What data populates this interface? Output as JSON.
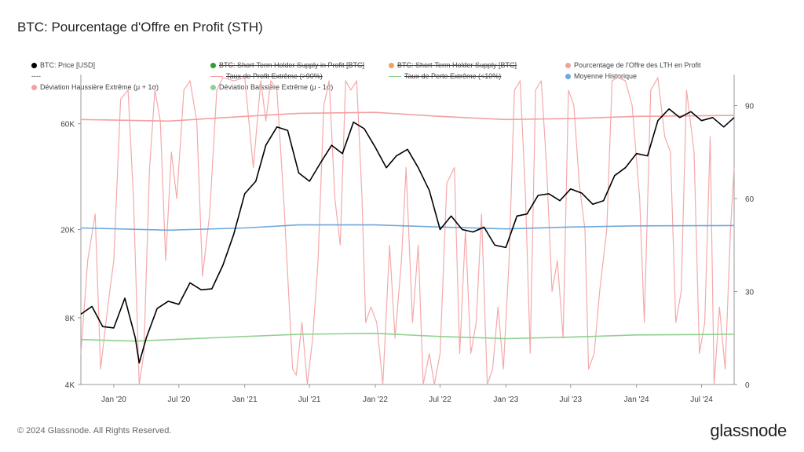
{
  "title": "BTC: Pourcentage d'Offre en Profit (STH)",
  "footer": "© 2024 Glassnode. All Rights Reserved.",
  "brand": "glassnode",
  "legend": [
    {
      "label": "BTC: Price [USD]",
      "color": "#000000",
      "marker": "dot",
      "struck": false
    },
    {
      "label": "BTC: Short-Term Holder Supply in Profit [BTC]",
      "color": "#2ca02c",
      "marker": "dot",
      "struck": true
    },
    {
      "label": "BTC: Short-Term Holder Supply [BTC]",
      "color": "#f5a05a",
      "marker": "dot",
      "struck": true
    },
    {
      "label": "Pourcentage de l'Offre des LTH en Profit",
      "color": "#f4a0a0",
      "marker": "dot",
      "struck": false
    },
    {
      "label": "----",
      "color": "#888888",
      "marker": "none",
      "struck": false
    },
    {
      "label": "Taux de Profit Extrême (>90%)",
      "color": "#f4a0a0",
      "marker": "line",
      "struck": true
    },
    {
      "label": "Taux de Perte Extrême (<10%)",
      "color": "#8fd18f",
      "marker": "line",
      "struck": true
    },
    {
      "label": "Moyenne Historique",
      "color": "#6fa8dc",
      "marker": "dot",
      "struck": false
    },
    {
      "label": "Déviation Haussière Extrême (μ + 1σ)",
      "color": "#f4a0a0",
      "marker": "dot",
      "struck": false
    },
    {
      "label": "Déviation Baissière Extrême (μ - 1σ)",
      "color": "#8fd18f",
      "marker": "dot",
      "struck": false
    }
  ],
  "chart_data": {
    "type": "line",
    "x_ticks": [
      "Jan '20",
      "Jul '20",
      "Jan '21",
      "Jul '21",
      "Jan '22",
      "Jul '22",
      "Jan '23",
      "Jul '23",
      "Jan '24",
      "Jul '24"
    ],
    "x_tick_dates": [
      "2020-01-01",
      "2020-07-01",
      "2021-01-01",
      "2021-07-01",
      "2022-01-01",
      "2022-07-01",
      "2023-01-01",
      "2023-07-01",
      "2024-01-01",
      "2024-07-01"
    ],
    "x_range": [
      "2019-10-01",
      "2024-09-30"
    ],
    "y_left": {
      "scale": "log",
      "ticks": [
        4000,
        8000,
        20000,
        60000
      ],
      "tick_labels": [
        "4K",
        "8K",
        "20K",
        "60K"
      ],
      "range": [
        4000,
        100000
      ]
    },
    "y_right": {
      "scale": "linear",
      "ticks": [
        0,
        30,
        60,
        90
      ],
      "range": [
        0,
        100
      ]
    },
    "series": [
      {
        "name": "BTC: Price [USD]",
        "axis": "left",
        "color": "#000000",
        "points": [
          [
            "2019-10-01",
            8300
          ],
          [
            "2019-11-01",
            9000
          ],
          [
            "2019-12-01",
            7300
          ],
          [
            "2020-01-01",
            7200
          ],
          [
            "2020-02-01",
            9800
          ],
          [
            "2020-03-01",
            6500
          ],
          [
            "2020-03-12",
            5000
          ],
          [
            "2020-04-01",
            6500
          ],
          [
            "2020-05-01",
            8800
          ],
          [
            "2020-06-01",
            9500
          ],
          [
            "2020-07-01",
            9200
          ],
          [
            "2020-08-01",
            11500
          ],
          [
            "2020-09-01",
            10700
          ],
          [
            "2020-10-01",
            10800
          ],
          [
            "2020-11-01",
            13800
          ],
          [
            "2020-12-01",
            19000
          ],
          [
            "2021-01-01",
            29000
          ],
          [
            "2021-02-01",
            33000
          ],
          [
            "2021-03-01",
            48000
          ],
          [
            "2021-04-01",
            58000
          ],
          [
            "2021-05-01",
            56000
          ],
          [
            "2021-06-01",
            36000
          ],
          [
            "2021-07-01",
            33000
          ],
          [
            "2021-08-01",
            40000
          ],
          [
            "2021-09-01",
            48000
          ],
          [
            "2021-10-01",
            44000
          ],
          [
            "2021-11-01",
            61000
          ],
          [
            "2021-12-01",
            57000
          ],
          [
            "2022-01-01",
            47000
          ],
          [
            "2022-02-01",
            38000
          ],
          [
            "2022-03-01",
            43000
          ],
          [
            "2022-04-01",
            46000
          ],
          [
            "2022-05-01",
            38000
          ],
          [
            "2022-06-01",
            30000
          ],
          [
            "2022-07-01",
            20000
          ],
          [
            "2022-08-01",
            23000
          ],
          [
            "2022-09-01",
            20000
          ],
          [
            "2022-10-01",
            19500
          ],
          [
            "2022-11-01",
            20500
          ],
          [
            "2022-12-01",
            17000
          ],
          [
            "2023-01-01",
            16600
          ],
          [
            "2023-02-01",
            23000
          ],
          [
            "2023-03-01",
            23500
          ],
          [
            "2023-04-01",
            28500
          ],
          [
            "2023-05-01",
            29000
          ],
          [
            "2023-06-01",
            27000
          ],
          [
            "2023-07-01",
            30500
          ],
          [
            "2023-08-01",
            29200
          ],
          [
            "2023-09-01",
            26000
          ],
          [
            "2023-10-01",
            27000
          ],
          [
            "2023-11-01",
            35000
          ],
          [
            "2023-12-01",
            38000
          ],
          [
            "2024-01-01",
            44000
          ],
          [
            "2024-02-01",
            43000
          ],
          [
            "2024-03-01",
            62000
          ],
          [
            "2024-04-01",
            70000
          ],
          [
            "2024-05-01",
            64000
          ],
          [
            "2024-06-01",
            68000
          ],
          [
            "2024-07-01",
            62000
          ],
          [
            "2024-08-01",
            64000
          ],
          [
            "2024-09-01",
            58000
          ],
          [
            "2024-09-30",
            64000
          ]
        ]
      },
      {
        "name": "Pourcentage de l'Offre des LTH en Profit",
        "axis": "right",
        "color": "#f4a0a0",
        "points": [
          [
            "2019-10-01",
            10
          ],
          [
            "2019-10-20",
            40
          ],
          [
            "2019-11-10",
            55
          ],
          [
            "2019-11-25",
            5
          ],
          [
            "2019-12-15",
            25
          ],
          [
            "2020-01-01",
            40
          ],
          [
            "2020-01-20",
            92
          ],
          [
            "2020-02-10",
            95
          ],
          [
            "2020-02-25",
            60
          ],
          [
            "2020-03-12",
            0
          ],
          [
            "2020-03-25",
            10
          ],
          [
            "2020-04-10",
            70
          ],
          [
            "2020-04-25",
            95
          ],
          [
            "2020-05-10",
            85
          ],
          [
            "2020-05-25",
            40
          ],
          [
            "2020-06-10",
            75
          ],
          [
            "2020-06-25",
            60
          ],
          [
            "2020-07-15",
            95
          ],
          [
            "2020-08-01",
            98
          ],
          [
            "2020-08-20",
            85
          ],
          [
            "2020-09-05",
            35
          ],
          [
            "2020-09-25",
            55
          ],
          [
            "2020-10-15",
            95
          ],
          [
            "2020-11-01",
            99
          ],
          [
            "2020-12-01",
            98
          ],
          [
            "2021-01-01",
            99
          ],
          [
            "2021-01-25",
            70
          ],
          [
            "2021-02-15",
            98
          ],
          [
            "2021-03-01",
            85
          ],
          [
            "2021-03-15",
            98
          ],
          [
            "2021-04-01",
            95
          ],
          [
            "2021-04-20",
            60
          ],
          [
            "2021-05-15",
            5
          ],
          [
            "2021-05-25",
            3
          ],
          [
            "2021-06-10",
            20
          ],
          [
            "2021-06-25",
            0
          ],
          [
            "2021-07-10",
            15
          ],
          [
            "2021-07-25",
            40
          ],
          [
            "2021-08-10",
            90
          ],
          [
            "2021-08-25",
            98
          ],
          [
            "2021-09-10",
            60
          ],
          [
            "2021-09-25",
            45
          ],
          [
            "2021-10-10",
            98
          ],
          [
            "2021-10-25",
            95
          ],
          [
            "2021-11-10",
            98
          ],
          [
            "2021-11-25",
            60
          ],
          [
            "2021-12-05",
            20
          ],
          [
            "2021-12-20",
            25
          ],
          [
            "2022-01-05",
            20
          ],
          [
            "2022-01-22",
            0
          ],
          [
            "2022-02-10",
            45
          ],
          [
            "2022-02-25",
            15
          ],
          [
            "2022-03-15",
            40
          ],
          [
            "2022-03-28",
            70
          ],
          [
            "2022-04-15",
            20
          ],
          [
            "2022-05-01",
            45
          ],
          [
            "2022-05-15",
            0
          ],
          [
            "2022-06-01",
            10
          ],
          [
            "2022-06-15",
            0
          ],
          [
            "2022-07-01",
            10
          ],
          [
            "2022-07-20",
            65
          ],
          [
            "2022-08-10",
            70
          ],
          [
            "2022-08-25",
            10
          ],
          [
            "2022-09-10",
            50
          ],
          [
            "2022-09-25",
            10
          ],
          [
            "2022-10-10",
            20
          ],
          [
            "2022-10-25",
            55
          ],
          [
            "2022-11-10",
            0
          ],
          [
            "2022-11-25",
            5
          ],
          [
            "2022-12-10",
            25
          ],
          [
            "2022-12-25",
            5
          ],
          [
            "2023-01-10",
            40
          ],
          [
            "2023-01-25",
            95
          ],
          [
            "2023-02-10",
            98
          ],
          [
            "2023-02-25",
            60
          ],
          [
            "2023-03-10",
            10
          ],
          [
            "2023-03-25",
            95
          ],
          [
            "2023-04-10",
            98
          ],
          [
            "2023-04-25",
            70
          ],
          [
            "2023-05-10",
            30
          ],
          [
            "2023-05-25",
            40
          ],
          [
            "2023-06-10",
            15
          ],
          [
            "2023-06-25",
            95
          ],
          [
            "2023-07-10",
            90
          ],
          [
            "2023-07-25",
            65
          ],
          [
            "2023-08-10",
            50
          ],
          [
            "2023-08-20",
            5
          ],
          [
            "2023-09-05",
            10
          ],
          [
            "2023-09-20",
            30
          ],
          [
            "2023-10-10",
            50
          ],
          [
            "2023-10-25",
            98
          ],
          [
            "2023-11-10",
            99
          ],
          [
            "2023-12-01",
            98
          ],
          [
            "2023-12-20",
            90
          ],
          [
            "2024-01-10",
            60
          ],
          [
            "2024-01-23",
            20
          ],
          [
            "2024-02-10",
            95
          ],
          [
            "2024-03-01",
            99
          ],
          [
            "2024-03-20",
            80
          ],
          [
            "2024-04-05",
            75
          ],
          [
            "2024-04-20",
            20
          ],
          [
            "2024-05-05",
            30
          ],
          [
            "2024-05-20",
            95
          ],
          [
            "2024-06-10",
            75
          ],
          [
            "2024-06-25",
            10
          ],
          [
            "2024-07-10",
            20
          ],
          [
            "2024-07-25",
            80
          ],
          [
            "2024-08-05",
            0
          ],
          [
            "2024-08-20",
            25
          ],
          [
            "2024-09-05",
            5
          ],
          [
            "2024-09-20",
            50
          ],
          [
            "2024-09-30",
            70
          ]
        ]
      },
      {
        "name": "Moyenne Historique",
        "axis": "right",
        "color": "#6fa8dc",
        "points": [
          [
            "2019-10-01",
            50.5
          ],
          [
            "2020-06-01",
            49.8
          ],
          [
            "2021-01-01",
            50.5
          ],
          [
            "2021-06-01",
            51.5
          ],
          [
            "2022-01-01",
            51.5
          ],
          [
            "2022-07-01",
            50.8
          ],
          [
            "2023-01-01",
            50.2
          ],
          [
            "2023-07-01",
            50.8
          ],
          [
            "2024-01-01",
            51.2
          ],
          [
            "2024-09-30",
            51.3
          ]
        ]
      },
      {
        "name": "Déviation Haussière Extrême (μ + 1σ)",
        "axis": "right",
        "color": "#f4a0a0",
        "points": [
          [
            "2019-10-01",
            85.5
          ],
          [
            "2020-06-01",
            85
          ],
          [
            "2021-01-01",
            86.5
          ],
          [
            "2021-06-01",
            87.5
          ],
          [
            "2022-01-01",
            87.8
          ],
          [
            "2022-07-01",
            86.5
          ],
          [
            "2023-01-01",
            85.5
          ],
          [
            "2023-07-01",
            85.8
          ],
          [
            "2024-01-01",
            86.5
          ],
          [
            "2024-09-30",
            86.8
          ]
        ]
      },
      {
        "name": "Déviation Baissière Extrême (μ - 1σ)",
        "axis": "right",
        "color": "#8fd18f",
        "points": [
          [
            "2019-10-01",
            14.5
          ],
          [
            "2020-03-01",
            14
          ],
          [
            "2021-01-01",
            15.5
          ],
          [
            "2021-06-01",
            16.2
          ],
          [
            "2022-01-01",
            16.5
          ],
          [
            "2022-07-01",
            15.5
          ],
          [
            "2023-01-01",
            14.8
          ],
          [
            "2023-07-01",
            15.3
          ],
          [
            "2024-01-01",
            16
          ],
          [
            "2024-09-30",
            16.2
          ]
        ]
      }
    ]
  }
}
